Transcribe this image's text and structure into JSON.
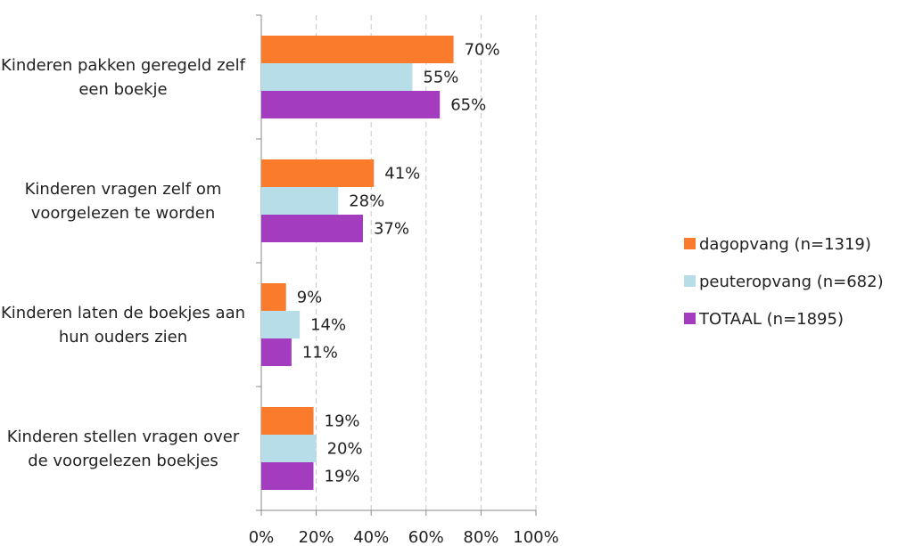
{
  "chart_data": {
    "type": "hbar",
    "categories": [
      "Kinderen pakken geregeld zelf een boekje",
      "Kinderen vragen zelf om voorgelezen te worden",
      "Kinderen laten de boekjes aan hun ouders zien",
      "Kinderen stellen vragen over de voorgelezen boekjes"
    ],
    "series": [
      {
        "name": "dagopvang (n=1319)",
        "color": "#f97b2b",
        "values": [
          70,
          41,
          9,
          19
        ],
        "value_labels": [
          "70%",
          "41%",
          "9%",
          "19%"
        ]
      },
      {
        "name": "peuteropvang (n=682)",
        "color": "#b7dde8",
        "values": [
          55,
          28,
          14,
          20
        ],
        "value_labels": [
          "55%",
          "28%",
          "14%",
          "20%"
        ]
      },
      {
        "name": "TOTAAL (n=1895)",
        "color": "#a43cbf",
        "values": [
          65,
          37,
          11,
          19
        ],
        "value_labels": [
          "65%",
          "37%",
          "11%",
          "19%"
        ]
      }
    ],
    "xlim": [
      0,
      100
    ],
    "xticks": [
      {
        "value": 0,
        "label": "0%"
      },
      {
        "value": 20,
        "label": "20%"
      },
      {
        "value": 40,
        "label": "40%"
      },
      {
        "value": 60,
        "label": "60%"
      },
      {
        "value": 80,
        "label": "80%"
      },
      {
        "value": 100,
        "label": "100%"
      }
    ],
    "grid": true,
    "legend": "right"
  }
}
